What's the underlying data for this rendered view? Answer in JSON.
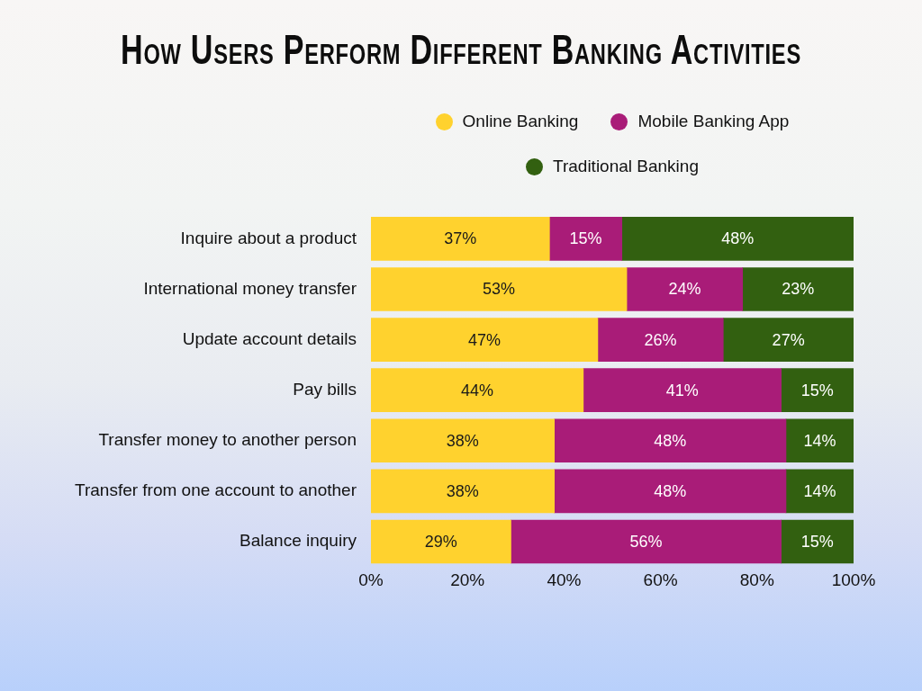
{
  "chart_data": {
    "type": "bar",
    "orientation": "horizontal",
    "stacked": true,
    "title": "How Users Perform Different Banking Activities",
    "categories": [
      "Inquire about a product",
      "International money transfer",
      "Update account details",
      "Pay bills",
      "Transfer money to another person",
      "Transfer from one account to another",
      "Balance inquiry"
    ],
    "series": [
      {
        "name": "Online Banking",
        "color": "#ffd22e",
        "values": [
          37,
          53,
          47,
          44,
          38,
          38,
          29
        ],
        "value_labels": [
          "37%",
          "53%",
          "47%",
          "44%",
          "38%",
          "38%",
          "29%"
        ]
      },
      {
        "name": "Mobile Banking App",
        "color": "#a91c78",
        "values": [
          15,
          24,
          26,
          41,
          48,
          48,
          56
        ],
        "value_labels": [
          "15%",
          "24%",
          "26%",
          "41%",
          "48%",
          "48%",
          "56%"
        ]
      },
      {
        "name": "Traditional Banking",
        "color": "#326010",
        "values": [
          48,
          23,
          27,
          15,
          14,
          14,
          15
        ],
        "value_labels": [
          "48%",
          "23%",
          "27%",
          "15%",
          "14%",
          "14%",
          "15%"
        ]
      }
    ],
    "xlim": [
      0,
      100
    ],
    "xticks": [
      {
        "value": 0,
        "label": "0%"
      },
      {
        "value": 20,
        "label": "20%"
      },
      {
        "value": 40,
        "label": "40%"
      },
      {
        "value": 60,
        "label": "60%"
      },
      {
        "value": 80,
        "label": "80%"
      },
      {
        "value": 100,
        "label": "100%"
      }
    ],
    "legend": "top"
  }
}
